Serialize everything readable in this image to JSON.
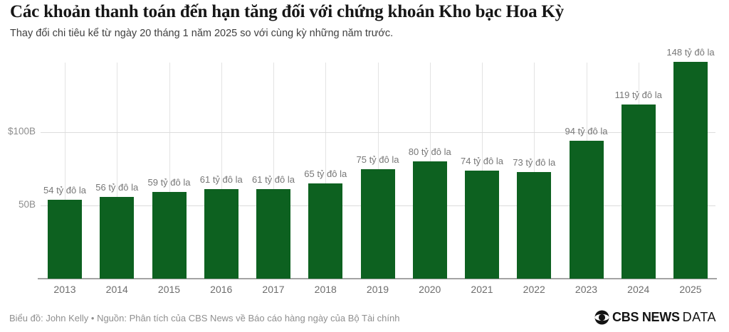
{
  "header": {
    "title": "Các khoản thanh toán đến hạn tăng đối với chứng khoán Kho bạc Hoa Kỳ",
    "subtitle": "Thay đổi chi tiêu kể từ ngày 20 tháng 1 năm 2025 so với cùng kỳ những năm trước."
  },
  "chart_data": {
    "type": "bar",
    "categories": [
      "2013",
      "2014",
      "2015",
      "2016",
      "2017",
      "2018",
      "2019",
      "2020",
      "2021",
      "2022",
      "2023",
      "2024",
      "2025"
    ],
    "values": [
      54,
      56,
      59,
      61,
      61,
      65,
      75,
      80,
      74,
      73,
      94,
      119,
      148
    ],
    "bar_labels": [
      "54 tỷ đô la",
      "56 tỷ đô la",
      "59 tỷ đô la",
      "61 tỷ đô la",
      "61 tỷ đô la",
      "65 tỷ đô la",
      "75 tỷ đô la",
      "80 tỷ đô la",
      "74 tỷ đô la",
      "73 tỷ đô la",
      "94 tỷ đô la",
      "119 tỷ đô la",
      "148 tỷ đô la"
    ],
    "title": "Các khoản thanh toán đến hạn tăng đối với chứng khoán Kho bạc Hoa Kỳ",
    "xlabel": "",
    "ylabel": "",
    "unit": "tỷ đô la (billion USD)",
    "ylim": [
      0,
      150
    ],
    "y_ticks": [
      {
        "value": 50,
        "label": "50B"
      },
      {
        "value": 100,
        "label": "$100B"
      }
    ],
    "grid": "horizontal and vertical light-gray gridlines",
    "legend": "none",
    "value_labels_shown": true
  },
  "footer": {
    "credit": "Biểu đồ: John Kelly • Nguồn: Phân tích của CBS News về Báo cáo hàng ngày của Bộ Tài chính",
    "logo": {
      "icon": "cbs-eye-icon",
      "brand_bold": "CBS NEWS",
      "brand_light": "DATA"
    }
  },
  "colors": {
    "bar_green": "#0d6120",
    "title_text": "#161616",
    "subtitle_text": "#3f3f3f",
    "value_label_text": "#777777",
    "axis_tick_text": "#8d8d8d",
    "year_label_text": "#6d6d6d",
    "gridline": "#e0e0e0",
    "baseline": "#a3a3a3",
    "footer_text": "#8f8f8f",
    "logo_black": "#141414",
    "background": "#ffffff"
  }
}
